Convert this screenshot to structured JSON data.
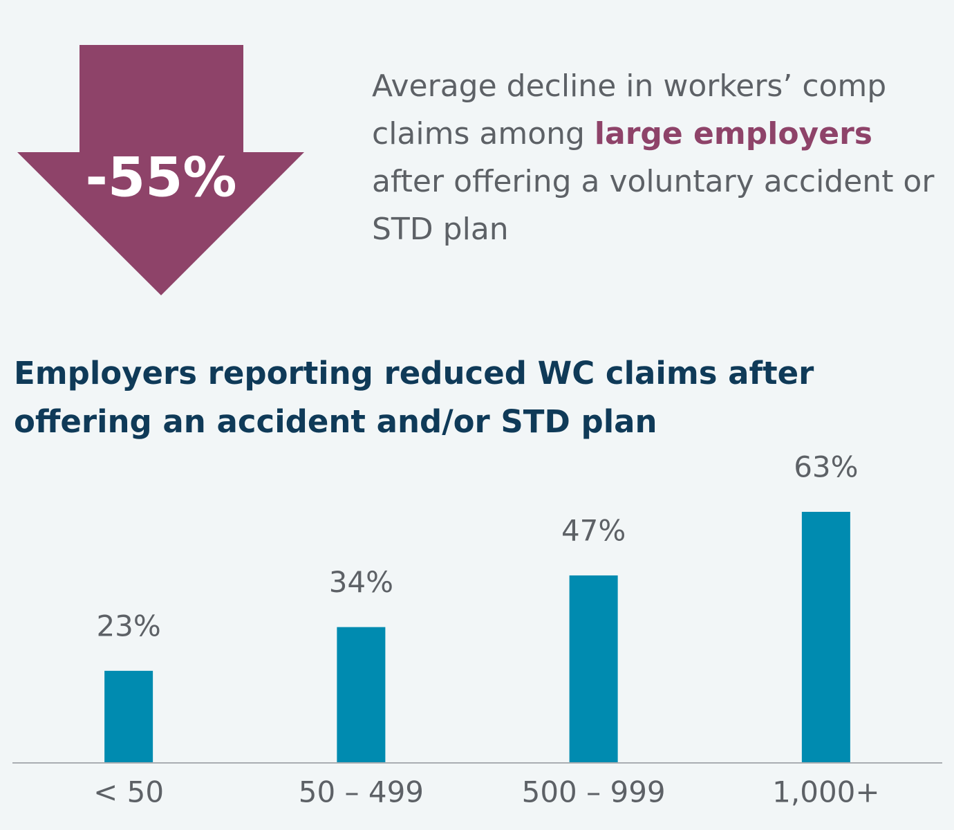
{
  "callout": {
    "value": "-55%",
    "text": [
      "Average decline in workers’ comp claims among ",
      "large employers",
      " after offering a voluntary accident or STD plan"
    ]
  },
  "chart_data": {
    "type": "bar",
    "title": "Employers reporting reduced WC claims after offering an accident and/or STD plan",
    "categories": [
      "< 50",
      "50 – 499",
      "500 – 999",
      "1,000+"
    ],
    "values": [
      23,
      34,
      47,
      63
    ],
    "value_labels": [
      "23%",
      "34%",
      "47%",
      "63%"
    ],
    "color": "#008bb0"
  }
}
